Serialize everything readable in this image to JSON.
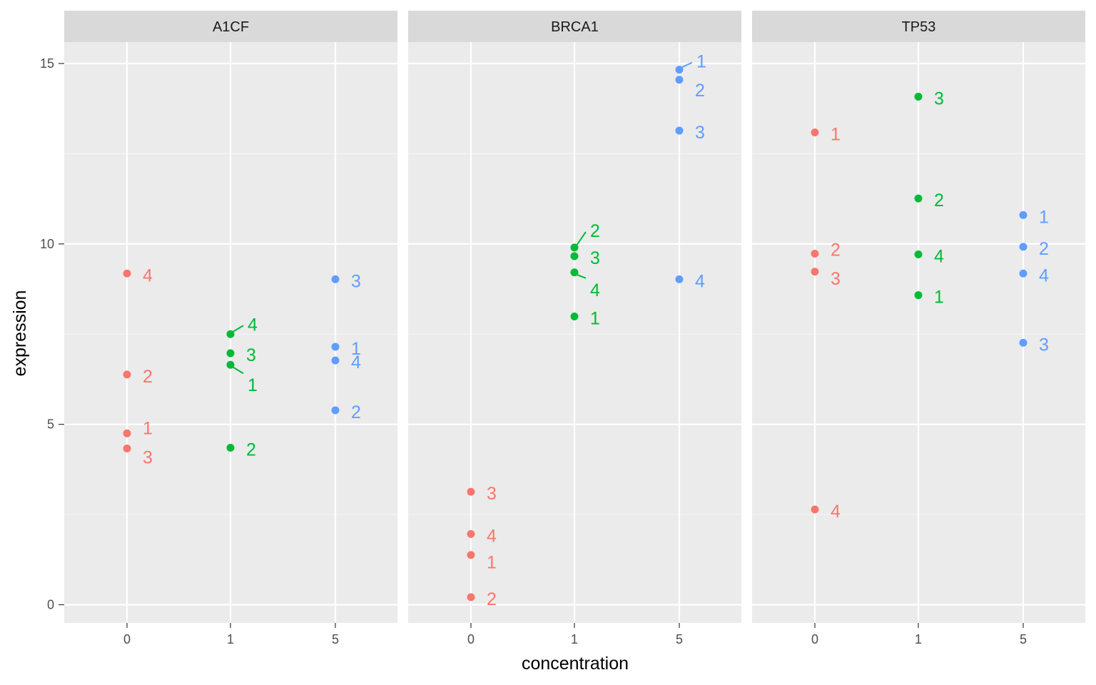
{
  "chart_data": {
    "type": "scatter",
    "xlabel": "concentration",
    "ylabel": "expression",
    "x_categories": [
      "0",
      "1",
      "5"
    ],
    "ylim": [
      -0.5,
      15.6
    ],
    "y_ticks": [
      0,
      5,
      10,
      15
    ],
    "colors": {
      "0": "#F8766D",
      "1": "#00BA38",
      "5": "#619CFF"
    },
    "panel_background": "#EBEBEB",
    "strip_background": "#D9D9D9",
    "grid": true,
    "facets": [
      {
        "name": "A1CF",
        "points": [
          {
            "x": "0",
            "y": 4.75,
            "label": "1"
          },
          {
            "x": "0",
            "y": 6.38,
            "label": "2"
          },
          {
            "x": "0",
            "y": 4.33,
            "label": "3"
          },
          {
            "x": "0",
            "y": 9.18,
            "label": "4"
          },
          {
            "x": "1",
            "y": 6.65,
            "label": "1"
          },
          {
            "x": "1",
            "y": 4.35,
            "label": "2"
          },
          {
            "x": "1",
            "y": 6.97,
            "label": "3"
          },
          {
            "x": "1",
            "y": 7.5,
            "label": "4"
          },
          {
            "x": "5",
            "y": 7.15,
            "label": "1"
          },
          {
            "x": "5",
            "y": 5.39,
            "label": "2"
          },
          {
            "x": "5",
            "y": 9.02,
            "label": "3"
          },
          {
            "x": "5",
            "y": 6.77,
            "label": "4"
          }
        ]
      },
      {
        "name": "BRCA1",
        "points": [
          {
            "x": "0",
            "y": 1.38,
            "label": "1"
          },
          {
            "x": "0",
            "y": 0.21,
            "label": "2"
          },
          {
            "x": "0",
            "y": 3.13,
            "label": "3"
          },
          {
            "x": "0",
            "y": 1.96,
            "label": "4"
          },
          {
            "x": "1",
            "y": 7.99,
            "label": "1"
          },
          {
            "x": "1",
            "y": 9.9,
            "label": "2"
          },
          {
            "x": "1",
            "y": 9.66,
            "label": "3"
          },
          {
            "x": "1",
            "y": 9.21,
            "label": "4"
          },
          {
            "x": "5",
            "y": 14.83,
            "label": "1"
          },
          {
            "x": "5",
            "y": 14.55,
            "label": "2"
          },
          {
            "x": "5",
            "y": 13.14,
            "label": "3"
          },
          {
            "x": "5",
            "y": 9.02,
            "label": "4"
          }
        ]
      },
      {
        "name": "TP53",
        "points": [
          {
            "x": "0",
            "y": 13.09,
            "label": "1"
          },
          {
            "x": "0",
            "y": 9.73,
            "label": "2"
          },
          {
            "x": "0",
            "y": 9.23,
            "label": "3"
          },
          {
            "x": "0",
            "y": 2.64,
            "label": "4"
          },
          {
            "x": "1",
            "y": 8.58,
            "label": "1"
          },
          {
            "x": "1",
            "y": 11.26,
            "label": "2"
          },
          {
            "x": "1",
            "y": 14.08,
            "label": "3"
          },
          {
            "x": "1",
            "y": 9.71,
            "label": "4"
          },
          {
            "x": "5",
            "y": 10.8,
            "label": "1"
          },
          {
            "x": "5",
            "y": 9.92,
            "label": "2"
          },
          {
            "x": "5",
            "y": 7.26,
            "label": "3"
          },
          {
            "x": "5",
            "y": 9.18,
            "label": "4"
          }
        ]
      }
    ]
  }
}
